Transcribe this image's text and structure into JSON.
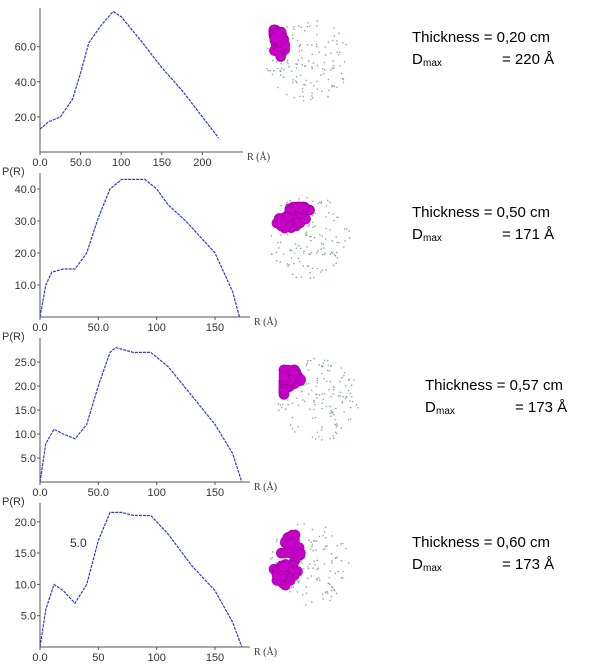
{
  "chart_data": [
    {
      "type": "line",
      "ylabel": null,
      "xlabel": "R (Å)",
      "color": "#2a3bd0",
      "xlim": [
        0,
        250
      ],
      "ylim": [
        0,
        82
      ],
      "xticks": [
        {
          "value": 0,
          "label": "0.0"
        },
        {
          "value": 50,
          "label": "50.0"
        },
        100,
        150,
        200
      ],
      "yticks": [
        {
          "value": 20,
          "label": "20.0"
        },
        {
          "value": 40,
          "label": "40.0"
        },
        {
          "value": 60,
          "label": "60.0"
        }
      ],
      "x": [
        0,
        10,
        25,
        40,
        50,
        60,
        75,
        90,
        100,
        125,
        150,
        175,
        200,
        220
      ],
      "values": [
        13,
        17,
        20,
        30,
        45,
        62,
        72,
        80,
        77,
        63,
        48,
        35,
        20,
        8
      ],
      "thickness_text": "Thickness = 0,20 cm",
      "dmax_symbol": "D",
      "dmax_subscript": "max",
      "dmax_value": "= 220 Å"
    },
    {
      "type": "line",
      "ylabel": "P(R)",
      "xlabel": "R (Å)",
      "color": "#2a3bd0",
      "xlim": [
        0,
        180
      ],
      "ylim": [
        0,
        45
      ],
      "xticks": [
        {
          "value": 0,
          "label": "0.0"
        },
        {
          "value": 50,
          "label": "50.0"
        },
        100,
        150
      ],
      "yticks": [
        {
          "value": 10,
          "label": "10.0"
        },
        {
          "value": 20,
          "label": "20.0"
        },
        {
          "value": 30,
          "label": "30.0"
        },
        {
          "value": 40,
          "label": "40.0"
        }
      ],
      "x": [
        0,
        5,
        10,
        20,
        30,
        40,
        50,
        60,
        70,
        80,
        90,
        100,
        110,
        125,
        150,
        165,
        171
      ],
      "values": [
        0,
        10,
        14,
        15,
        15,
        20,
        31,
        40,
        43,
        43,
        43,
        40,
        35,
        30,
        20,
        8,
        0
      ],
      "thickness_text": "Thickness = 0,50 cm",
      "dmax_symbol": "D",
      "dmax_subscript": "max",
      "dmax_value": "= 171 Å"
    },
    {
      "type": "line",
      "ylabel": "P(R)",
      "xlabel": "R (Å)",
      "color": "#2a3bd0",
      "xlim": [
        0,
        180
      ],
      "ylim": [
        0,
        30
      ],
      "xticks": [
        {
          "value": 0,
          "label": "0.0"
        },
        {
          "value": 50,
          "label": "50.0"
        },
        100,
        150
      ],
      "yticks": [
        {
          "value": 5,
          "label": "5.0"
        },
        {
          "value": 10,
          "label": "10.0"
        },
        {
          "value": 15,
          "label": "15.0"
        },
        {
          "value": 20,
          "label": "20.0"
        },
        {
          "value": 25,
          "label": "25.0"
        }
      ],
      "x": [
        0,
        5,
        12,
        20,
        30,
        40,
        50,
        60,
        65,
        80,
        95,
        110,
        130,
        150,
        165,
        173
      ],
      "values": [
        0,
        8,
        11,
        10,
        9,
        12,
        20,
        27,
        28,
        27,
        27,
        24,
        18,
        12,
        6,
        0
      ],
      "thickness_text": "Thickness = 0,57 cm",
      "dmax_symbol": "D",
      "dmax_subscript": "max",
      "dmax_value": "= 173 Å"
    },
    {
      "type": "line",
      "ylabel": "P(R)",
      "xlabel": "R (Å)",
      "color": "#2a3bd0",
      "xlim": [
        0,
        180
      ],
      "ylim": [
        0,
        23
      ],
      "xticks": [
        {
          "value": 0,
          "label": "0.0"
        },
        50,
        100,
        150
      ],
      "yticks": [
        {
          "value": 5,
          "label": "5.0"
        },
        {
          "value": 10,
          "label": "10.0"
        },
        {
          "value": 15,
          "label": "15.0"
        },
        {
          "value": 20,
          "label": "20.0"
        }
      ],
      "annotation": "5.0",
      "x": [
        0,
        5,
        12,
        20,
        30,
        40,
        50,
        60,
        70,
        80,
        95,
        110,
        130,
        150,
        165,
        173
      ],
      "values": [
        0,
        6,
        10,
        9,
        7,
        10,
        17,
        21.5,
        21.5,
        21,
        21,
        18,
        13,
        9,
        4,
        0
      ],
      "thickness_text": "Thickness = 0,60 cm",
      "dmax_symbol": "D",
      "dmax_subscript": "max",
      "dmax_value": "= 173 Å"
    }
  ]
}
